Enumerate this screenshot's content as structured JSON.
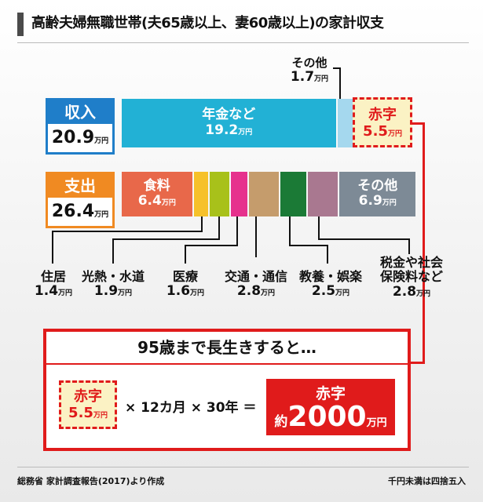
{
  "title": "高齢夫婦無職世帯(夫65歳以上、妻60歳以上)の家計収支",
  "unit": "万円",
  "income": {
    "label": "収入",
    "total": "20.9",
    "color": "#1f7ec9",
    "segments": [
      {
        "name": "年金など",
        "value": "19.2",
        "color": "#22b1d5"
      },
      {
        "name": "その他",
        "value": "1.7",
        "color": "#a5d8ee"
      }
    ]
  },
  "deficit": {
    "label": "赤字",
    "value": "5.5"
  },
  "expense": {
    "label": "支出",
    "total": "26.4",
    "color": "#f08a22",
    "segments": [
      {
        "name": "食料",
        "value": "6.4",
        "color": "#e8684a"
      },
      {
        "name": "住居",
        "value": "1.4",
        "color": "#f6c12a"
      },
      {
        "name": "光熱・水道",
        "value": "1.9",
        "color": "#a8c11a"
      },
      {
        "name": "医療",
        "value": "1.6",
        "color": "#e6318d"
      },
      {
        "name": "交通・通信",
        "value": "2.8",
        "color": "#c59c6c"
      },
      {
        "name": "教養・娯楽",
        "value": "2.5",
        "color": "#1b7a36"
      },
      {
        "name": "税金や社会保険料など",
        "value": "2.8",
        "color": "#a97890"
      },
      {
        "name": "その他",
        "value": "6.9",
        "color": "#7d8a96"
      }
    ]
  },
  "labels": {
    "tax_line1": "税金や社会",
    "tax_line2": "保険料など"
  },
  "calc": {
    "heading": "95歳まで長生きすると…",
    "deficit_label": "赤字",
    "deficit_value": "5.5",
    "months_text": "× 12カ月 × 30年 ＝",
    "result_label": "赤字",
    "result_prefix": "約",
    "result_value": "2000",
    "result_unit": "万円"
  },
  "footer": {
    "source": "総務省 家計調査報告(2017)より作成",
    "note": "千円未満は四捨五入"
  },
  "chart_data": {
    "type": "bar",
    "title": "高齢夫婦無職世帯(夫65歳以上、妻60歳以上)の家計収支",
    "unit": "万円",
    "categories": [
      "収入",
      "支出"
    ],
    "series": [
      {
        "name": "年金など",
        "values": [
          19.2,
          0
        ]
      },
      {
        "name": "その他",
        "values": [
          1.7,
          6.9
        ]
      },
      {
        "name": "赤字",
        "values": [
          5.5,
          0
        ]
      },
      {
        "name": "食料",
        "values": [
          0,
          6.4
        ]
      },
      {
        "name": "住居",
        "values": [
          0,
          1.4
        ]
      },
      {
        "name": "光熱・水道",
        "values": [
          0,
          1.9
        ]
      },
      {
        "name": "医療",
        "values": [
          0,
          1.6
        ]
      },
      {
        "name": "交通・通信",
        "values": [
          0,
          2.8
        ]
      },
      {
        "name": "教養・娯楽",
        "values": [
          0,
          2.5
        ]
      },
      {
        "name": "税金や社会保険料など",
        "values": [
          0,
          2.8
        ]
      }
    ],
    "totals": {
      "収入": 20.9,
      "支出": 26.4
    },
    "deficit_total": 2000
  }
}
